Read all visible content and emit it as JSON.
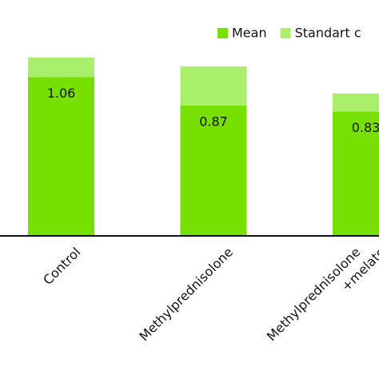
{
  "chart_data": {
    "type": "bar",
    "stacked": true,
    "categories": [
      "Control",
      "Methylprednisolone",
      [
        "Methylprednisolone",
        "+melato"
      ]
    ],
    "series": [
      {
        "name": "Mean",
        "color": "#77e000",
        "values": [
          1.06,
          0.87,
          0.83
        ]
      },
      {
        "name": "Standart c",
        "color": "#aaef6c",
        "values": [
          0.13,
          0.26,
          0.12
        ]
      }
    ],
    "ylim": [
      0,
      1.2
    ]
  }
}
